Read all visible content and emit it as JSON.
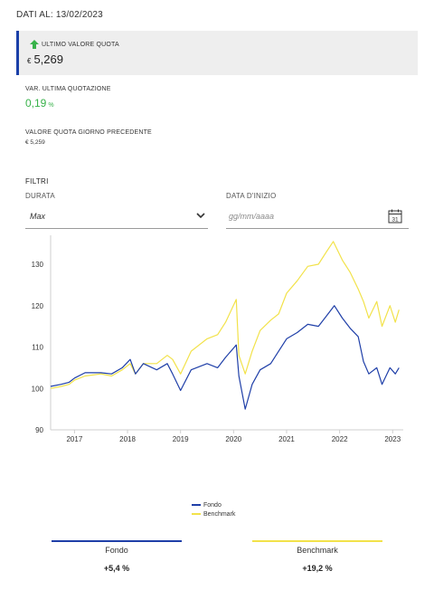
{
  "header": {
    "date_line": "DATI AL: 13/02/2023"
  },
  "quota": {
    "label": "ULTIMO VALORE QUOTA",
    "trend_icon": "arrow-up-icon",
    "currency": "€",
    "value": "5,269"
  },
  "variation": {
    "label": "VAR. ULTIMA QUOTAZIONE",
    "value": "0,19",
    "unit": "%"
  },
  "previous": {
    "label": "VALORE QUOTA GIORNO PRECEDENTE",
    "value": "€ 5,259"
  },
  "filters": {
    "title": "FILTRI",
    "durata_label": "DURATA",
    "durata_value": "Max",
    "start_date_label": "DATA D'INIZIO",
    "start_date_placeholder": "gg/mm/aaaa",
    "calendar_day": "31"
  },
  "chart_data": {
    "type": "line",
    "ylim": [
      90,
      137
    ],
    "xlim": [
      2016.55,
      2023.2
    ],
    "y_ticks": [
      "90",
      "100",
      "110",
      "120",
      "130"
    ],
    "x_ticks": [
      "2017",
      "2018",
      "2019",
      "2020",
      "2021",
      "2022",
      "2023"
    ],
    "series": [
      {
        "name": "Fondo",
        "color": "#1f3fa8",
        "points": [
          [
            2016.55,
            100.5
          ],
          [
            2016.75,
            101.0
          ],
          [
            2016.9,
            101.5
          ],
          [
            2017.0,
            102.5
          ],
          [
            2017.2,
            103.8
          ],
          [
            2017.5,
            103.8
          ],
          [
            2017.7,
            103.5
          ],
          [
            2017.9,
            105.0
          ],
          [
            2018.05,
            107.0
          ],
          [
            2018.15,
            103.5
          ],
          [
            2018.3,
            106.0
          ],
          [
            2018.55,
            104.5
          ],
          [
            2018.75,
            106.0
          ],
          [
            2018.85,
            103.5
          ],
          [
            2019.0,
            99.5
          ],
          [
            2019.2,
            104.5
          ],
          [
            2019.5,
            106.0
          ],
          [
            2019.7,
            105.0
          ],
          [
            2019.85,
            107.5
          ],
          [
            2020.05,
            110.5
          ],
          [
            2020.1,
            103.0
          ],
          [
            2020.22,
            95.0
          ],
          [
            2020.35,
            101.0
          ],
          [
            2020.5,
            104.5
          ],
          [
            2020.7,
            106.0
          ],
          [
            2020.85,
            109.0
          ],
          [
            2021.0,
            112.0
          ],
          [
            2021.2,
            113.5
          ],
          [
            2021.4,
            115.5
          ],
          [
            2021.6,
            115.0
          ],
          [
            2021.75,
            117.5
          ],
          [
            2021.9,
            120.0
          ],
          [
            2022.05,
            117.0
          ],
          [
            2022.2,
            114.5
          ],
          [
            2022.35,
            112.5
          ],
          [
            2022.45,
            106.5
          ],
          [
            2022.55,
            103.5
          ],
          [
            2022.7,
            105.0
          ],
          [
            2022.8,
            101.0
          ],
          [
            2022.95,
            105.0
          ],
          [
            2023.05,
            103.5
          ],
          [
            2023.12,
            105.0
          ]
        ]
      },
      {
        "name": "Benchmark",
        "color": "#f2e24a",
        "points": [
          [
            2016.55,
            100.0
          ],
          [
            2016.75,
            100.5
          ],
          [
            2016.9,
            101.0
          ],
          [
            2017.0,
            102.0
          ],
          [
            2017.2,
            103.0
          ],
          [
            2017.5,
            103.5
          ],
          [
            2017.7,
            103.0
          ],
          [
            2017.9,
            104.5
          ],
          [
            2018.05,
            106.0
          ],
          [
            2018.15,
            103.5
          ],
          [
            2018.3,
            106.0
          ],
          [
            2018.55,
            106.0
          ],
          [
            2018.75,
            108.0
          ],
          [
            2018.85,
            107.0
          ],
          [
            2019.0,
            103.5
          ],
          [
            2019.2,
            109.0
          ],
          [
            2019.5,
            112.0
          ],
          [
            2019.7,
            113.0
          ],
          [
            2019.85,
            116.0
          ],
          [
            2020.05,
            121.5
          ],
          [
            2020.1,
            108.0
          ],
          [
            2020.22,
            103.5
          ],
          [
            2020.35,
            109.0
          ],
          [
            2020.5,
            114.0
          ],
          [
            2020.7,
            116.5
          ],
          [
            2020.85,
            118.0
          ],
          [
            2021.0,
            123.0
          ],
          [
            2021.2,
            126.0
          ],
          [
            2021.4,
            129.5
          ],
          [
            2021.6,
            130.0
          ],
          [
            2021.75,
            133.0
          ],
          [
            2021.88,
            135.5
          ],
          [
            2022.05,
            131.0
          ],
          [
            2022.2,
            128.0
          ],
          [
            2022.35,
            124.0
          ],
          [
            2022.45,
            121.0
          ],
          [
            2022.55,
            117.0
          ],
          [
            2022.7,
            121.0
          ],
          [
            2022.8,
            115.0
          ],
          [
            2022.95,
            120.0
          ],
          [
            2023.05,
            116.0
          ],
          [
            2023.12,
            119.0
          ]
        ]
      }
    ]
  },
  "summary": [
    {
      "name": "Fondo",
      "value": "+5,4 %",
      "color": "#1f3fa8"
    },
    {
      "name": "Benchmark",
      "value": "+19,2 %",
      "color": "#f2e24a"
    }
  ]
}
